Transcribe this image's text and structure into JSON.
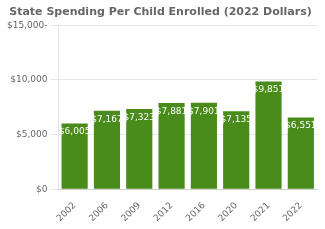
{
  "chart_data": {
    "type": "bar",
    "title": "State Spending Per Child Enrolled (2022 Dollars)",
    "categories": [
      "2002",
      "2006",
      "2009",
      "2012",
      "2016",
      "2020",
      "2021",
      "2022"
    ],
    "values": [
      6005,
      7167,
      7323,
      7881,
      7901,
      7135,
      9851,
      6551
    ],
    "value_labels": [
      "$6,005",
      "$7,167",
      "$7,323",
      "$7,881",
      "$7,901",
      "$7,135",
      "$9,851",
      "$6,551"
    ],
    "color": "#4a8c1c",
    "ylim": [
      0,
      15000
    ],
    "yticks": [
      {
        "value": 0,
        "label": "$0"
      },
      {
        "value": 5000,
        "label": "$5,000"
      },
      {
        "value": 10000,
        "label": "$10,000"
      },
      {
        "value": 15000,
        "label": "$15,000-"
      }
    ],
    "grid": true,
    "data_labels": true
  }
}
